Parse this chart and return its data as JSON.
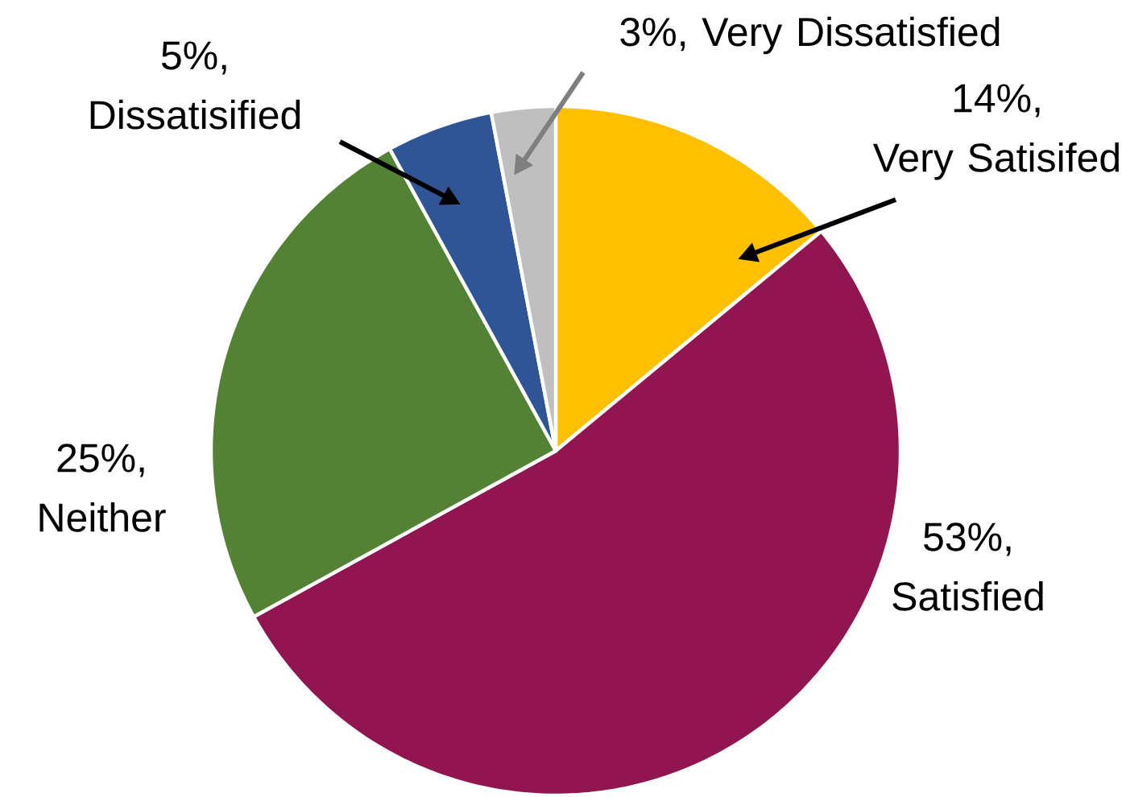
{
  "chart_data": {
    "type": "pie",
    "categories": [
      "Very Satisifed",
      "Satisfied",
      "Neither",
      "Dissatisified",
      "Very Dissatisfied"
    ],
    "values": [
      14,
      53,
      25,
      5,
      3
    ],
    "colors": [
      "#ffc000",
      "#901551",
      "#548235",
      "#2f5597",
      "#bfbfbf"
    ],
    "value_labels": [
      "14%,",
      "53%,",
      "25%,",
      "5%,",
      "3%,"
    ]
  }
}
